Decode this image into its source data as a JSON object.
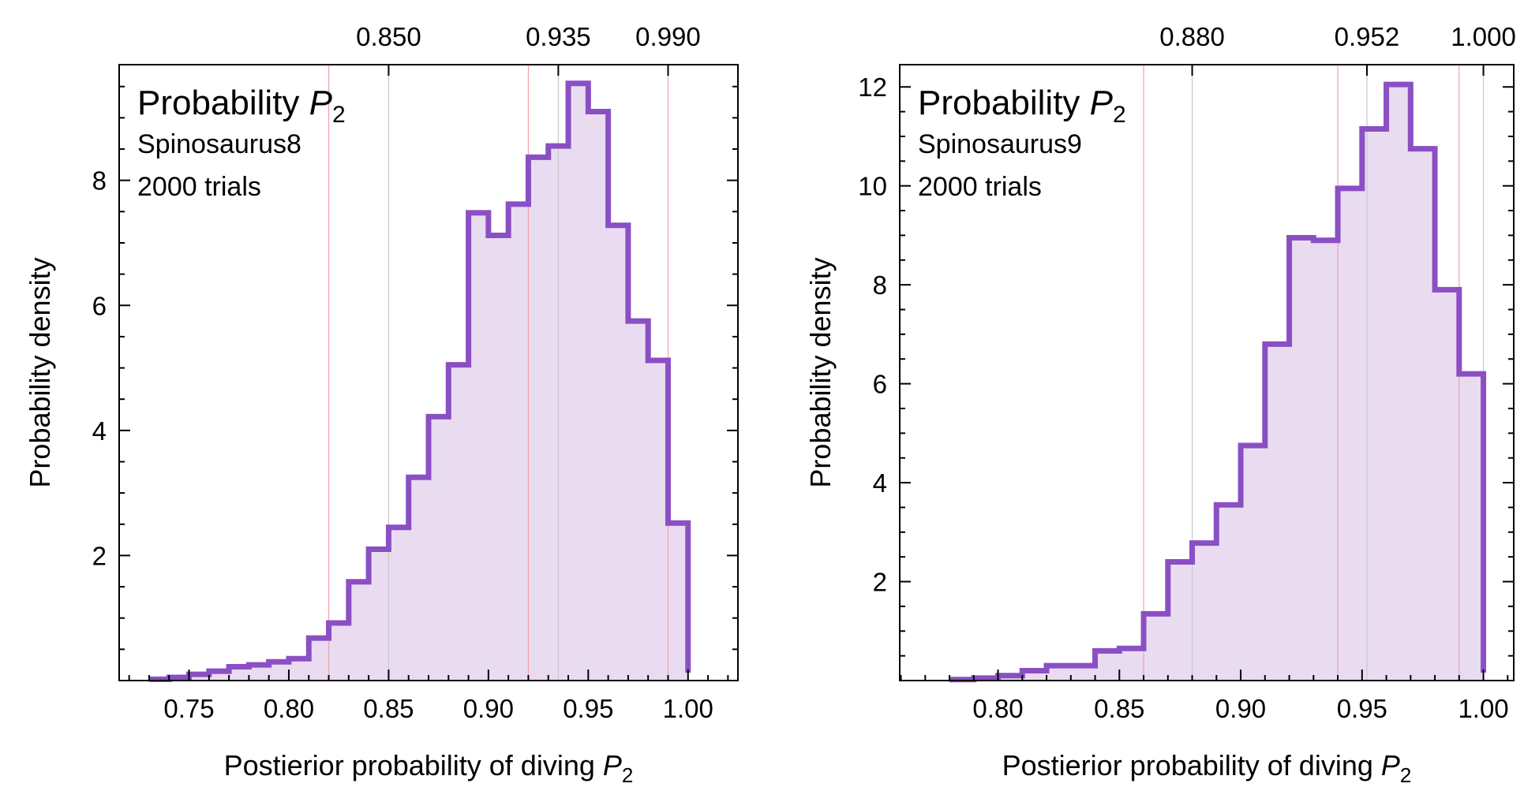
{
  "chart_data": [
    {
      "type": "histogram",
      "panel": "left",
      "title": "Probability",
      "title_symbol": "P",
      "title_sub": "2",
      "subtitle_lines": [
        "Spinosaurus8",
        "2000 trials"
      ],
      "xlabel": "Postierior probability of diving",
      "xlabel_symbol": "P",
      "xlabel_sub": "2",
      "ylabel": "Probability density",
      "xlim": [
        0.715,
        1.025
      ],
      "ylim": [
        0,
        9.85
      ],
      "xticks": [
        0.75,
        0.8,
        0.85,
        0.9,
        0.95,
        1.0
      ],
      "xtick_labels": [
        "0.75",
        "0.80",
        "0.85",
        "0.90",
        "0.95",
        "1.00"
      ],
      "yticks": [
        2,
        4,
        6,
        8
      ],
      "ytick_labels": [
        "2",
        "4",
        "6",
        "8"
      ],
      "bin_edges": [
        0.73,
        0.74,
        0.75,
        0.76,
        0.77,
        0.78,
        0.79,
        0.8,
        0.81,
        0.82,
        0.83,
        0.84,
        0.85,
        0.86,
        0.87,
        0.88,
        0.89,
        0.9,
        0.91,
        0.92,
        0.93,
        0.94,
        0.95,
        0.96,
        0.97,
        0.98,
        0.99,
        1.0
      ],
      "densities": [
        0.02,
        0.05,
        0.1,
        0.15,
        0.22,
        0.25,
        0.3,
        0.35,
        0.68,
        0.92,
        1.58,
        2.1,
        2.45,
        3.25,
        4.22,
        5.05,
        7.48,
        7.12,
        7.62,
        8.37,
        8.55,
        9.55,
        9.1,
        7.28,
        5.75,
        5.12,
        2.52
      ],
      "reference_lines": [
        {
          "x": 0.82,
          "color": "#f0a0a8"
        },
        {
          "x": 0.85,
          "color": "#c8c8c8"
        },
        {
          "x": 0.92,
          "color": "#f0a0a8"
        },
        {
          "x": 0.935,
          "color": "#c8c8c8"
        },
        {
          "x": 0.99,
          "color": "#f0a0a8"
        }
      ],
      "top_labels": [
        {
          "x": 0.85,
          "label": "0.850"
        },
        {
          "x": 0.935,
          "label": "0.935"
        },
        {
          "x": 0.99,
          "label": "0.990"
        }
      ],
      "grid": false,
      "colors": {
        "line": "#8b4fc4",
        "fill": "#e9dcf1"
      }
    },
    {
      "type": "histogram",
      "panel": "right",
      "title": "Probability",
      "title_symbol": "P",
      "title_sub": "2",
      "subtitle_lines": [
        "Spinosaurus9",
        "2000 trials"
      ],
      "xlabel": "Postierior probability of diving",
      "xlabel_symbol": "P",
      "xlabel_sub": "2",
      "ylabel": "Probability density",
      "xlim": [
        0.7595,
        1.0125
      ],
      "ylim": [
        0,
        12.45
      ],
      "xticks": [
        0.8,
        0.85,
        0.9,
        0.95,
        1.0
      ],
      "xtick_labels": [
        "0.80",
        "0.85",
        "0.90",
        "0.95",
        "1.00"
      ],
      "yticks": [
        2,
        4,
        6,
        8,
        10,
        12
      ],
      "ytick_labels": [
        "2",
        "4",
        "6",
        "8",
        "10",
        "12"
      ],
      "bin_edges": [
        0.78,
        0.79,
        0.8,
        0.81,
        0.82,
        0.83,
        0.84,
        0.85,
        0.86,
        0.87,
        0.88,
        0.89,
        0.9,
        0.91,
        0.92,
        0.93,
        0.94,
        0.95,
        0.96,
        0.97,
        0.98,
        0.99,
        1.0
      ],
      "densities": [
        0.02,
        0.05,
        0.1,
        0.2,
        0.3,
        0.3,
        0.6,
        0.65,
        1.35,
        2.4,
        2.78,
        3.55,
        4.75,
        6.8,
        8.95,
        8.9,
        9.95,
        11.15,
        12.05,
        10.75,
        7.9,
        6.2
      ],
      "reference_lines": [
        {
          "x": 0.86,
          "color": "#f0a0a8"
        },
        {
          "x": 0.88,
          "color": "#c8c8c8"
        },
        {
          "x": 0.94,
          "color": "#f0a0a8"
        },
        {
          "x": 0.952,
          "color": "#c8c8c8"
        },
        {
          "x": 0.99,
          "color": "#f0a0a8"
        },
        {
          "x": 1.0,
          "color": "#c8c8c8"
        }
      ],
      "top_labels": [
        {
          "x": 0.88,
          "label": "0.880"
        },
        {
          "x": 0.952,
          "label": "0.952"
        },
        {
          "x": 1.0,
          "label": "1.000"
        }
      ],
      "grid": false,
      "colors": {
        "line": "#8b4fc4",
        "fill": "#e9dcf1"
      }
    }
  ]
}
